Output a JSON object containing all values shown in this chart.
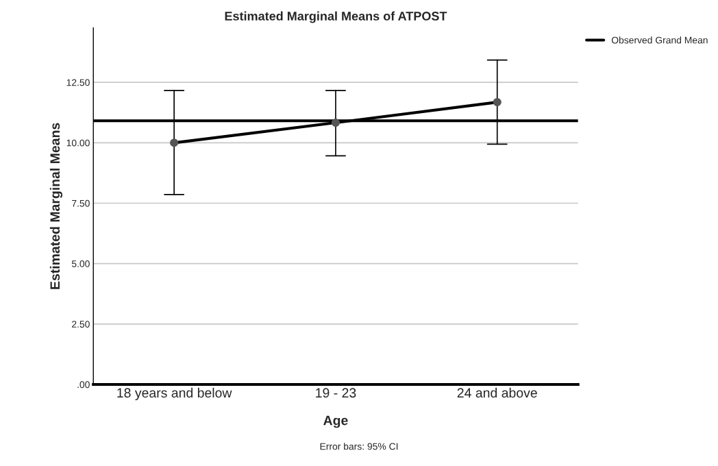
{
  "chart_data": {
    "type": "line",
    "title": "Estimated Marginal Means of ATPOST",
    "xlabel": "Age",
    "ylabel": "Estimated Marginal Means",
    "categories": [
      "18 years and below",
      "19 - 23",
      "24 and above"
    ],
    "series": [
      {
        "color": "#000000",
        "values": [
          10.0,
          10.83,
          11.68
        ],
        "errors": [
          [
            7.86,
            12.16
          ],
          [
            9.46,
            12.16
          ],
          [
            9.94,
            13.42
          ]
        ]
      }
    ],
    "ylim": [
      0,
      14.75
    ],
    "yticks": [
      {
        "value": 0,
        "label": ".00"
      },
      {
        "value": 2.5,
        "label": "2.50"
      },
      {
        "value": 5,
        "label": "5.00"
      },
      {
        "value": 7.5,
        "label": "7.50"
      },
      {
        "value": 10,
        "label": "10.00"
      },
      {
        "value": 12.5,
        "label": "12.50"
      }
    ],
    "ref_lines": [
      {
        "axis": "y",
        "value": 10.91,
        "label": "Observed Grand Mean",
        "color": "#000000"
      }
    ],
    "grid": "y",
    "legend": "top right",
    "marker": "circle",
    "line_style": "solid",
    "annotations": [
      "Error bars: 95% CI"
    ]
  }
}
